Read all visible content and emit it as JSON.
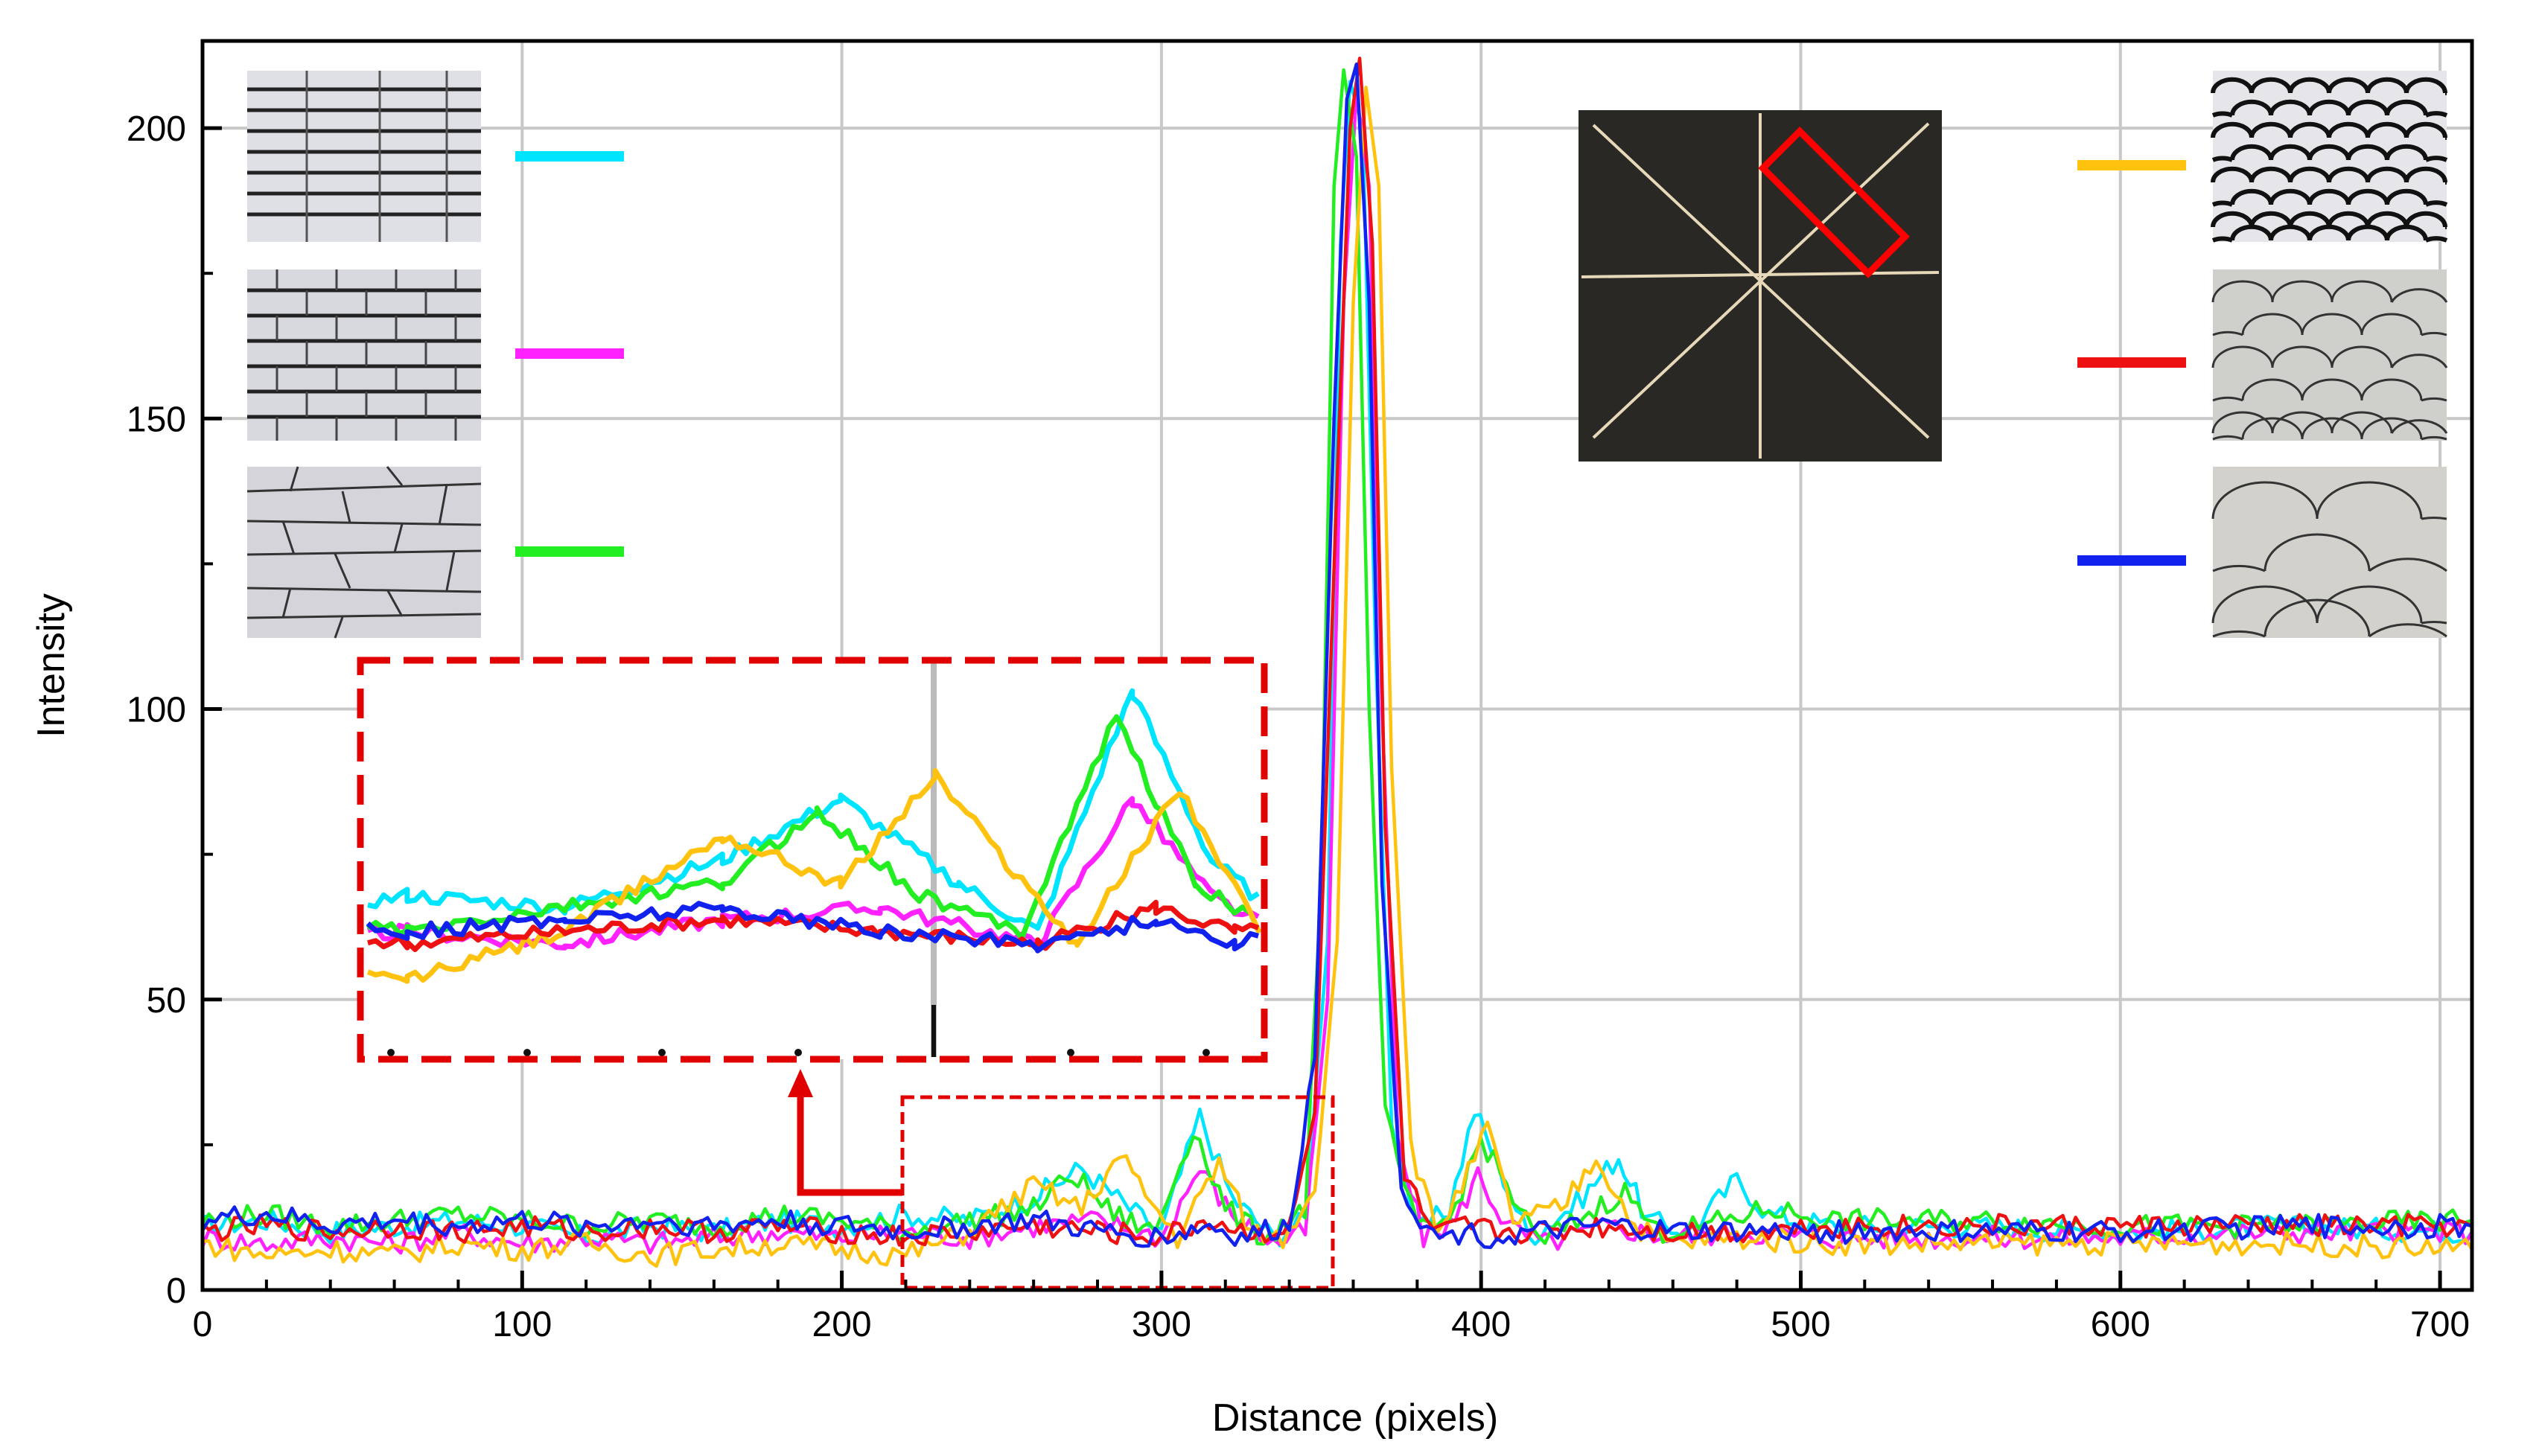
{
  "chart_data": {
    "type": "line",
    "xlabel": "Distance (pixels)",
    "ylabel": "Intensity",
    "xlim": [
      0,
      710
    ],
    "ylim": [
      0,
      215
    ],
    "xticks": [
      "0",
      "100",
      "200",
      "300",
      "400",
      "500",
      "600",
      "700"
    ],
    "yticks": [
      "0",
      "50",
      "100",
      "150",
      "200"
    ],
    "grid": true,
    "legend_position": "inset thumbnails top-left and top-right",
    "series": [
      {
        "color": "#00e5ff",
        "style": "brick grid",
        "points": [
          [
            0,
            11
          ],
          [
            20,
            12
          ],
          [
            40,
            10
          ],
          [
            60,
            11
          ],
          [
            80,
            12
          ],
          [
            100,
            11
          ],
          [
            120,
            9
          ],
          [
            140,
            11
          ],
          [
            160,
            10
          ],
          [
            180,
            12
          ],
          [
            200,
            11
          ],
          [
            220,
            13
          ],
          [
            240,
            12
          ],
          [
            260,
            16
          ],
          [
            275,
            21
          ],
          [
            290,
            14
          ],
          [
            300,
            10
          ],
          [
            312,
            30
          ],
          [
            322,
            16
          ],
          [
            335,
            9
          ],
          [
            345,
            12
          ],
          [
            352,
            60
          ],
          [
            356,
            180
          ],
          [
            359,
            208
          ],
          [
            363,
            200
          ],
          [
            367,
            110
          ],
          [
            372,
            30
          ],
          [
            380,
            10
          ],
          [
            390,
            14
          ],
          [
            398,
            31
          ],
          [
            405,
            22
          ],
          [
            415,
            9
          ],
          [
            430,
            15
          ],
          [
            443,
            23
          ],
          [
            452,
            12
          ],
          [
            465,
            10
          ],
          [
            480,
            19
          ],
          [
            490,
            13
          ],
          [
            510,
            11
          ],
          [
            550,
            11
          ],
          [
            600,
            10
          ],
          [
            650,
            11
          ],
          [
            710,
            10
          ]
        ]
      },
      {
        "color": "#ff22ff",
        "style": "running bond",
        "points": [
          [
            0,
            9
          ],
          [
            20,
            8
          ],
          [
            40,
            9
          ],
          [
            60,
            8
          ],
          [
            80,
            10
          ],
          [
            100,
            8
          ],
          [
            120,
            9
          ],
          [
            140,
            8
          ],
          [
            160,
            9
          ],
          [
            180,
            10
          ],
          [
            200,
            9
          ],
          [
            220,
            10
          ],
          [
            240,
            9
          ],
          [
            260,
            11
          ],
          [
            280,
            12
          ],
          [
            300,
            9
          ],
          [
            312,
            21
          ],
          [
            322,
            13
          ],
          [
            335,
            8
          ],
          [
            345,
            10
          ],
          [
            352,
            50
          ],
          [
            357,
            170
          ],
          [
            361,
            206
          ],
          [
            365,
            190
          ],
          [
            369,
            100
          ],
          [
            374,
            25
          ],
          [
            382,
            9
          ],
          [
            392,
            12
          ],
          [
            399,
            20
          ],
          [
            408,
            11
          ],
          [
            420,
            8
          ],
          [
            440,
            11
          ],
          [
            460,
            9
          ],
          [
            480,
            10
          ],
          [
            510,
            9
          ],
          [
            550,
            9
          ],
          [
            600,
            9
          ],
          [
            650,
            10
          ],
          [
            710,
            10
          ]
        ]
      },
      {
        "color": "#22ee22",
        "style": "ashlar",
        "points": [
          [
            0,
            12
          ],
          [
            20,
            13
          ],
          [
            40,
            11
          ],
          [
            60,
            12
          ],
          [
            80,
            13
          ],
          [
            100,
            12
          ],
          [
            120,
            11
          ],
          [
            140,
            12
          ],
          [
            160,
            11
          ],
          [
            180,
            13
          ],
          [
            200,
            12
          ],
          [
            220,
            10
          ],
          [
            240,
            12
          ],
          [
            260,
            14
          ],
          [
            272,
            20
          ],
          [
            285,
            13
          ],
          [
            298,
            10
          ],
          [
            310,
            28
          ],
          [
            320,
            14
          ],
          [
            332,
            9
          ],
          [
            345,
            14
          ],
          [
            350,
            70
          ],
          [
            354,
            190
          ],
          [
            357,
            210
          ],
          [
            361,
            195
          ],
          [
            365,
            100
          ],
          [
            370,
            30
          ],
          [
            380,
            10
          ],
          [
            390,
            12
          ],
          [
            400,
            26
          ],
          [
            408,
            18
          ],
          [
            418,
            8
          ],
          [
            430,
            12
          ],
          [
            445,
            17
          ],
          [
            455,
            10
          ],
          [
            470,
            11
          ],
          [
            490,
            14
          ],
          [
            510,
            12
          ],
          [
            550,
            12
          ],
          [
            600,
            11
          ],
          [
            650,
            11
          ],
          [
            710,
            12
          ]
        ]
      },
      {
        "color": "#ffc20e",
        "style": "scale large",
        "points": [
          [
            0,
            8
          ],
          [
            20,
            6
          ],
          [
            40,
            7
          ],
          [
            60,
            6
          ],
          [
            80,
            8
          ],
          [
            100,
            7
          ],
          [
            120,
            8
          ],
          [
            140,
            6
          ],
          [
            160,
            7
          ],
          [
            180,
            8
          ],
          [
            200,
            7
          ],
          [
            220,
            6
          ],
          [
            240,
            10
          ],
          [
            260,
            18
          ],
          [
            275,
            14
          ],
          [
            287,
            23
          ],
          [
            297,
            15
          ],
          [
            305,
            9
          ],
          [
            318,
            22
          ],
          [
            328,
            10
          ],
          [
            338,
            9
          ],
          [
            348,
            18
          ],
          [
            355,
            60
          ],
          [
            360,
            170
          ],
          [
            364,
            207
          ],
          [
            368,
            190
          ],
          [
            372,
            90
          ],
          [
            378,
            25
          ],
          [
            386,
            10
          ],
          [
            396,
            20
          ],
          [
            402,
            28
          ],
          [
            410,
            12
          ],
          [
            425,
            14
          ],
          [
            436,
            23
          ],
          [
            448,
            11
          ],
          [
            460,
            8
          ],
          [
            480,
            9
          ],
          [
            510,
            8
          ],
          [
            550,
            8
          ],
          [
            600,
            8
          ],
          [
            650,
            8
          ],
          [
            710,
            7
          ]
        ]
      },
      {
        "color": "#ee1111",
        "style": "scale medium",
        "points": [
          [
            0,
            10
          ],
          [
            20,
            11
          ],
          [
            40,
            10
          ],
          [
            60,
            11
          ],
          [
            80,
            10
          ],
          [
            100,
            11
          ],
          [
            120,
            10
          ],
          [
            140,
            11
          ],
          [
            160,
            10
          ],
          [
            180,
            11
          ],
          [
            200,
            10
          ],
          [
            220,
            9
          ],
          [
            240,
            10
          ],
          [
            260,
            11
          ],
          [
            280,
            10
          ],
          [
            300,
            9
          ],
          [
            315,
            12
          ],
          [
            325,
            10
          ],
          [
            340,
            10
          ],
          [
            348,
            30
          ],
          [
            355,
            140
          ],
          [
            359,
            200
          ],
          [
            362,
            212
          ],
          [
            366,
            180
          ],
          [
            370,
            80
          ],
          [
            376,
            20
          ],
          [
            385,
            9
          ],
          [
            395,
            11
          ],
          [
            405,
            10
          ],
          [
            420,
            10
          ],
          [
            440,
            11
          ],
          [
            460,
            10
          ],
          [
            480,
            10
          ],
          [
            510,
            11
          ],
          [
            550,
            11
          ],
          [
            600,
            11
          ],
          [
            650,
            11
          ],
          [
            710,
            11
          ]
        ]
      },
      {
        "color": "#1122ee",
        "style": "scale small",
        "points": [
          [
            0,
            12
          ],
          [
            20,
            13
          ],
          [
            40,
            11
          ],
          [
            60,
            12
          ],
          [
            80,
            11
          ],
          [
            100,
            12
          ],
          [
            120,
            11
          ],
          [
            140,
            12
          ],
          [
            160,
            11
          ],
          [
            180,
            12
          ],
          [
            200,
            11
          ],
          [
            220,
            10
          ],
          [
            240,
            11
          ],
          [
            260,
            12
          ],
          [
            280,
            10
          ],
          [
            300,
            9
          ],
          [
            315,
            11
          ],
          [
            325,
            9
          ],
          [
            340,
            11
          ],
          [
            348,
            40
          ],
          [
            354,
            150
          ],
          [
            358,
            205
          ],
          [
            361,
            211
          ],
          [
            365,
            170
          ],
          [
            369,
            70
          ],
          [
            375,
            18
          ],
          [
            385,
            9
          ],
          [
            395,
            10
          ],
          [
            405,
            9
          ],
          [
            420,
            10
          ],
          [
            440,
            11
          ],
          [
            460,
            10
          ],
          [
            480,
            10
          ],
          [
            510,
            10
          ],
          [
            550,
            10
          ],
          [
            600,
            10
          ],
          [
            650,
            11
          ],
          [
            710,
            11
          ]
        ]
      }
    ]
  }
}
